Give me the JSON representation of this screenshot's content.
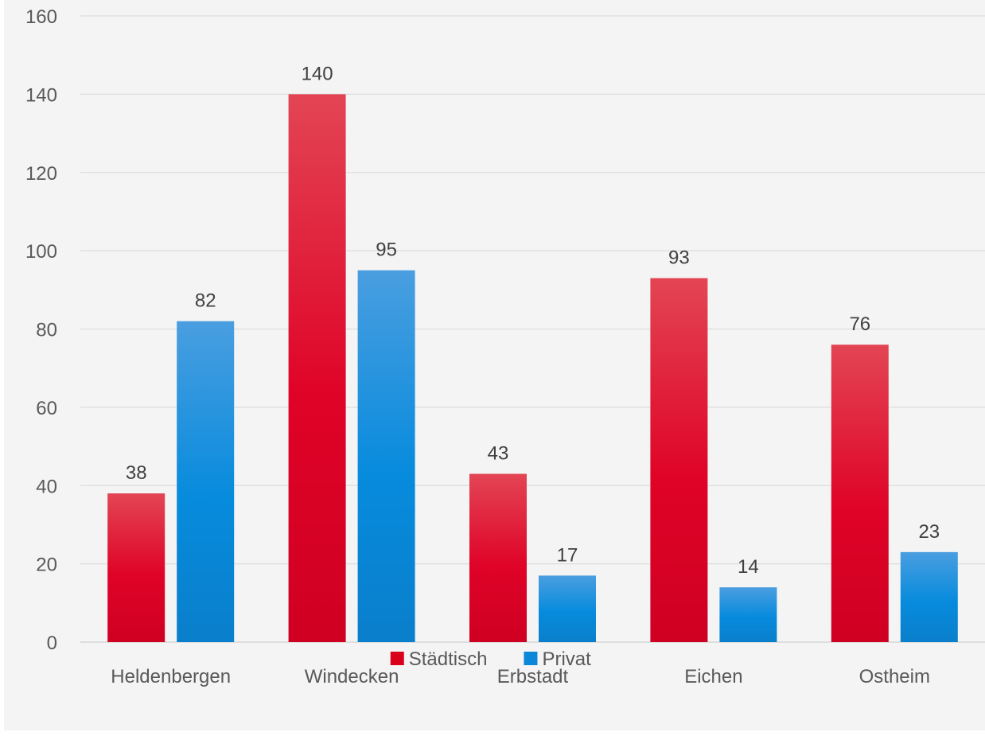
{
  "chart_data": {
    "type": "bar",
    "title": "",
    "xlabel": "",
    "ylabel": "",
    "categories": [
      "Heldenbergen",
      "Windecken",
      "Erbstadt",
      "Eichen",
      "Ostheim"
    ],
    "series": [
      {
        "name": "Städtisch",
        "color": "#d9001b",
        "values": [
          38,
          140,
          43,
          93,
          76
        ]
      },
      {
        "name": "Privat",
        "color": "#0a87d8",
        "values": [
          82,
          95,
          17,
          14,
          23
        ]
      }
    ],
    "ylim": [
      0,
      160
    ],
    "yticks": [
      0,
      20,
      40,
      60,
      80,
      100,
      120,
      140,
      160
    ],
    "grid": true,
    "data_labels": true,
    "legend_position": "bottom"
  }
}
